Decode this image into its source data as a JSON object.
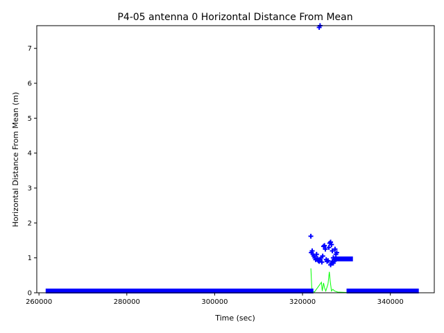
{
  "chart_data": {
    "type": "scatter",
    "title": "P4-05 antenna 0 Horizontal Distance From Mean",
    "xlabel": "Time (sec)",
    "ylabel": "Horizontal Distance From Mean (m)",
    "xlim": [
      259500,
      350000
    ],
    "ylim": [
      0,
      7.65
    ],
    "x_ticks": [
      260000,
      280000,
      300000,
      320000,
      340000
    ],
    "y_ticks": [
      0,
      1,
      2,
      3,
      4,
      5,
      6,
      7
    ],
    "grid": false,
    "colors": {
      "distance": "#0000ff",
      "error": "#00ff00"
    },
    "series": [
      {
        "marker": "plus",
        "color": "#0000ff",
        "segments": [
          {
            "x_start": 262000,
            "x_end": 322000,
            "y": 0.05
          },
          {
            "x_start": 330500,
            "x_end": 346000,
            "y": 0.05
          },
          {
            "x_start": 327500,
            "x_end": 331000,
            "y": 0.97
          }
        ],
        "points": [
          [
            321900,
            1.62
          ],
          [
            323800,
            7.6
          ],
          [
            324000,
            7.65
          ],
          [
            322000,
            1.15
          ],
          [
            322200,
            1.2
          ],
          [
            322400,
            1.1
          ],
          [
            322600,
            1.05
          ],
          [
            322800,
            1.0
          ],
          [
            323000,
            0.95
          ],
          [
            323200,
            1.1
          ],
          [
            323400,
            0.98
          ],
          [
            323600,
            0.92
          ],
          [
            323800,
            0.9
          ],
          [
            324000,
            0.95
          ],
          [
            324200,
            1.0
          ],
          [
            324400,
            0.88
          ],
          [
            324600,
            1.05
          ],
          [
            324800,
            1.33
          ],
          [
            325000,
            1.35
          ],
          [
            325200,
            1.25
          ],
          [
            325400,
            0.95
          ],
          [
            325600,
            0.9
          ],
          [
            325800,
            0.92
          ],
          [
            326000,
            1.3
          ],
          [
            326200,
            1.42
          ],
          [
            326400,
            1.45
          ],
          [
            326600,
            1.38
          ],
          [
            326800,
            1.2
          ],
          [
            327000,
            0.85
          ],
          [
            327200,
            0.9
          ],
          [
            327400,
            1.25
          ],
          [
            327600,
            1.1
          ],
          [
            327800,
            1.15
          ],
          [
            326400,
            0.8
          ],
          [
            326600,
            0.85
          ],
          [
            326800,
            0.9
          ],
          [
            327000,
            1.0
          ]
        ]
      },
      {
        "marker": "line",
        "color": "#00ff00",
        "points": [
          [
            321900,
            0.7
          ],
          [
            322100,
            0.15
          ],
          [
            322300,
            0.05
          ],
          [
            322700,
            0.02
          ],
          [
            324300,
            0.3
          ],
          [
            324500,
            0.05
          ],
          [
            324800,
            0.28
          ],
          [
            325000,
            0.15
          ],
          [
            325300,
            0.05
          ],
          [
            325800,
            0.25
          ],
          [
            326100,
            0.6
          ],
          [
            326300,
            0.35
          ],
          [
            326600,
            0.05
          ],
          [
            326900,
            0.1
          ],
          [
            327300,
            0.05
          ],
          [
            328000,
            0.02
          ],
          [
            330000,
            0.01
          ]
        ]
      }
    ]
  }
}
